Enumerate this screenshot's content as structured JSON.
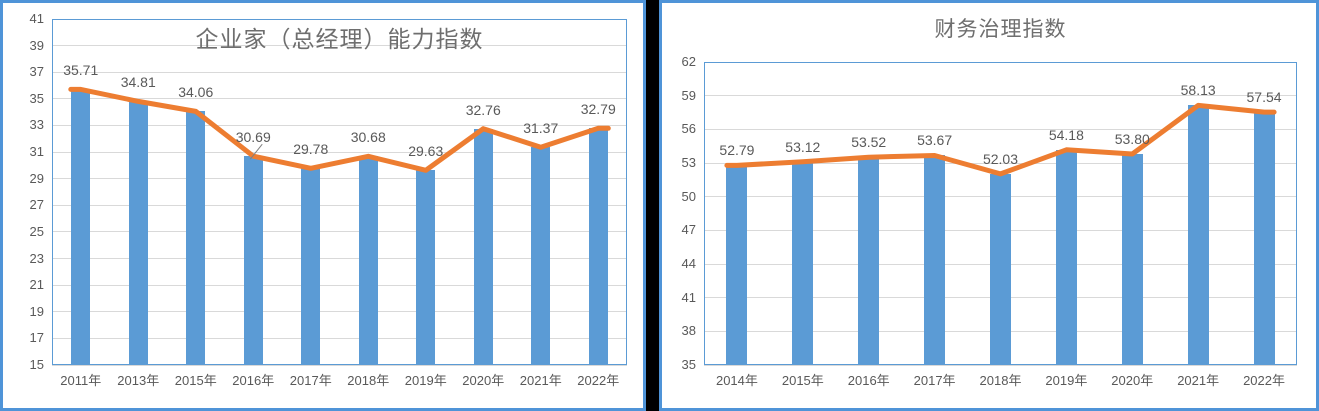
{
  "page": {
    "background_color": "#ffffff",
    "divider_color": "#000000",
    "panel_border_color": "#4f94d8"
  },
  "chart_data": [
    {
      "type": "bar",
      "overlay_line": true,
      "title": "企业家（总经理）能力指数",
      "categories": [
        "2011年",
        "2013年",
        "2015年",
        "2016年",
        "2017年",
        "2018年",
        "2019年",
        "2020年",
        "2021年",
        "2022年"
      ],
      "values": [
        35.71,
        34.81,
        34.06,
        30.69,
        29.78,
        30.68,
        29.63,
        32.76,
        31.37,
        32.79
      ],
      "data_labels": [
        "35.71",
        "34.81",
        "34.06",
        "30.69",
        "29.78",
        "30.68",
        "29.63",
        "32.76",
        "31.37",
        "32.79"
      ],
      "ylim": [
        15,
        41
      ],
      "y_ticks": [
        41,
        39,
        37,
        35,
        33,
        31,
        29,
        27,
        25,
        23,
        21,
        19,
        17,
        15
      ],
      "xlabel": "",
      "ylabel": "",
      "grid": true,
      "legend": "none",
      "bar_color": "#5b9bd5",
      "line_color": "#ed7d31",
      "label_color": "#595959",
      "title_color": "#6e6e6e",
      "grid_color": "#d9d9d9"
    },
    {
      "type": "bar",
      "overlay_line": true,
      "title": "财务治理指数",
      "categories": [
        "2014年",
        "2015年",
        "2016年",
        "2017年",
        "2018年",
        "2019年",
        "2020年",
        "2021年",
        "2022年"
      ],
      "values": [
        52.79,
        53.12,
        53.52,
        53.67,
        52.03,
        54.18,
        53.8,
        58.13,
        57.54
      ],
      "data_labels": [
        "52.79",
        "53.12",
        "53.52",
        "53.67",
        "52.03",
        "54.18",
        "53.80",
        "58.13",
        "57.54"
      ],
      "ylim": [
        35,
        62
      ],
      "y_ticks": [
        62,
        59,
        56,
        53,
        50,
        47,
        44,
        41,
        38,
        35
      ],
      "xlabel": "",
      "ylabel": "",
      "grid": true,
      "legend": "none",
      "bar_color": "#5b9bd5",
      "line_color": "#ed7d31",
      "label_color": "#595959",
      "title_color": "#6e6e6e",
      "grid_color": "#d9d9d9"
    }
  ]
}
